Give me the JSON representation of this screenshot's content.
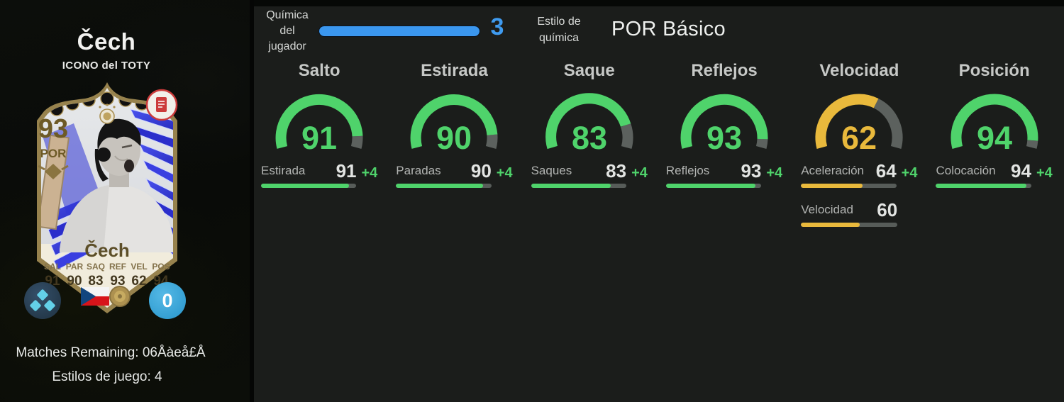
{
  "left_panel": {
    "player_name": "Čech",
    "card_program": "ICONO del TOTY",
    "matches_remaining": "Matches Remaining: 06Åàeå£Å",
    "playstyles_line": "Estilos de juego: 4",
    "card": {
      "rating": "93",
      "position": "POR",
      "name": "Čech",
      "stat_abbrs": [
        "SAL",
        "PAR",
        "SAQ",
        "REF",
        "VEL",
        "POS"
      ],
      "stat_values": [
        "91",
        "90",
        "83",
        "93",
        "62",
        "94"
      ],
      "playstyle_count": "0"
    },
    "icons": {
      "card_note": "red-document-icon",
      "playstyles_badge": "playstyles-diamonds-icon",
      "nation": "czech-republic-flag",
      "club": "icon-laurel-badge",
      "card_emblem": "gold-eagle-emblem"
    }
  },
  "header": {
    "chemistry_label": "Química del jugador",
    "chemistry_value": "3",
    "chemistry_fill": 1,
    "chemistry_bar_color": "#3b97ef",
    "style_label": "Estilo de química",
    "style_value": "POR Básico"
  },
  "chart_data": {
    "type": "gauge-set",
    "max": 99,
    "colors": {
      "green": "#4fd36b",
      "yellow": "#e9b93c",
      "track": "#5c615e"
    },
    "gauges": [
      {
        "title": "Salto",
        "value": 91,
        "color": "#4fd36b",
        "substats": [
          {
            "label": "Estirada",
            "value": 91,
            "boost": "+4"
          }
        ]
      },
      {
        "title": "Estirada",
        "value": 90,
        "color": "#4fd36b",
        "substats": [
          {
            "label": "Paradas",
            "value": 90,
            "boost": "+4"
          }
        ]
      },
      {
        "title": "Saque",
        "value": 83,
        "color": "#4fd36b",
        "substats": [
          {
            "label": "Saques",
            "value": 83,
            "boost": "+4"
          }
        ]
      },
      {
        "title": "Reflejos",
        "value": 93,
        "color": "#4fd36b",
        "substats": [
          {
            "label": "Reflejos",
            "value": 93,
            "boost": "+4"
          }
        ]
      },
      {
        "title": "Velocidad",
        "value": 62,
        "color": "#e9b93c",
        "substats": [
          {
            "label": "Aceleración",
            "value": 64,
            "boost": "+4"
          },
          {
            "label": "Velocidad",
            "value": 60,
            "boost": ""
          }
        ]
      },
      {
        "title": "Posición",
        "value": 94,
        "color": "#4fd36b",
        "substats": [
          {
            "label": "Colocación",
            "value": 94,
            "boost": "+4"
          }
        ]
      }
    ]
  }
}
